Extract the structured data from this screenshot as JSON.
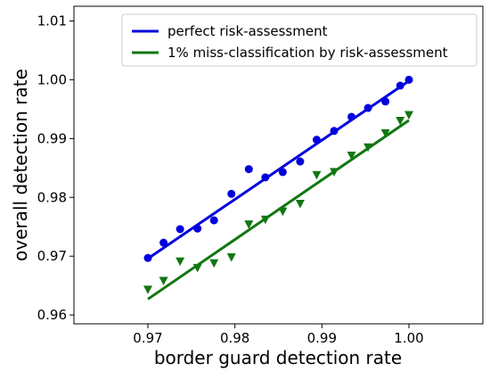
{
  "chart_data": {
    "type": "scatter",
    "xlabel": "border guard detection rate",
    "ylabel": "overall detection rate",
    "xlim": [
      0.9615,
      1.0085
    ],
    "ylim": [
      0.9585,
      1.0125
    ],
    "x_ticks": [
      "0.97",
      "0.98",
      "0.99",
      "1.00"
    ],
    "y_ticks": [
      "0.96",
      "0.97",
      "0.98",
      "0.99",
      "1.00",
      "1.01"
    ],
    "grid": false,
    "legend_position": "top-right",
    "series": [
      {
        "name": "perfect risk-assessment",
        "color": "#0000dd",
        "marker": "circle",
        "x": [
          0.97,
          0.9718,
          0.9737,
          0.9757,
          0.9776,
          0.9796,
          0.9816,
          0.9835,
          0.9855,
          0.9875,
          0.9894,
          0.9914,
          0.9934,
          0.9953,
          0.9973,
          0.999,
          1.0
        ],
        "y": [
          0.9697,
          0.9723,
          0.9746,
          0.9747,
          0.9761,
          0.9806,
          0.9848,
          0.9834,
          0.9843,
          0.9861,
          0.9898,
          0.9913,
          0.9937,
          0.9952,
          0.9963,
          0.999,
          1.0
        ],
        "fit": {
          "x": [
            0.97,
            1.0
          ],
          "y": [
            0.9696,
            0.9998
          ]
        }
      },
      {
        "name": "1% miss-classification by risk-assessment",
        "color": "#117711",
        "marker": "triangle-down",
        "x": [
          0.97,
          0.9718,
          0.9737,
          0.9757,
          0.9776,
          0.9796,
          0.9816,
          0.9835,
          0.9855,
          0.9875,
          0.9894,
          0.9914,
          0.9934,
          0.9953,
          0.9973,
          0.999,
          1.0
        ],
        "y": [
          0.9643,
          0.9658,
          0.9691,
          0.968,
          0.9688,
          0.9698,
          0.9754,
          0.9762,
          0.9776,
          0.9789,
          0.9838,
          0.9843,
          0.9871,
          0.9885,
          0.9909,
          0.993,
          0.994
        ],
        "fit": {
          "x": [
            0.97,
            1.0
          ],
          "y": [
            0.9627,
            0.9931
          ]
        }
      }
    ]
  }
}
